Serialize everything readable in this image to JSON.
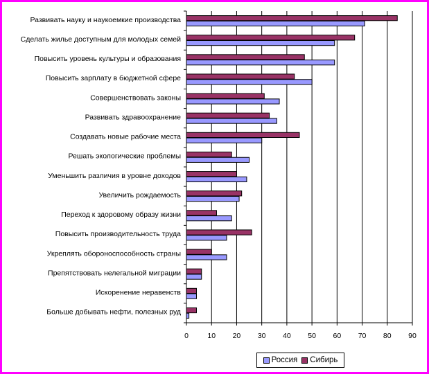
{
  "chart_data": {
    "type": "bar",
    "orientation": "horizontal",
    "categories": [
      "Развивать науку и наукоемкие производства",
      "Сделать жилье доступным для молодых семей",
      "Повысить уровень культуры и образования",
      "Повысить зарплату в бюджетной сфере",
      "Совершенствовать законы",
      "Развивать здравоохранение",
      "Создавать новые рабочие места",
      "Решать экологические проблемы",
      "Уменьшить различия в уровне доходов",
      "Увеличить рождаемость",
      "Переход к здоровому образу жизни",
      "Повысить производительность труда",
      "Укреплять обороноспособность страны",
      "Препятствовать нелегальной миграции",
      "Искоренение неравенств",
      "Больше добывать нефти, полезных руд"
    ],
    "series": [
      {
        "name": "Сибирь",
        "color": "#993366",
        "values": [
          84,
          67,
          47,
          43,
          31,
          33,
          45,
          18,
          20,
          22,
          12,
          26,
          10,
          6,
          4,
          4
        ]
      },
      {
        "name": "Россия",
        "color": "#9999ff",
        "values": [
          71,
          59,
          59,
          50,
          37,
          36,
          30,
          25,
          24,
          21,
          18,
          16,
          16,
          6,
          4,
          1
        ]
      }
    ],
    "x_ticks": [
      "0",
      "10",
      "20",
      "30",
      "40",
      "50",
      "60",
      "70",
      "80",
      "90"
    ],
    "xlim": [
      0,
      90
    ],
    "grid": "vertical",
    "legend": {
      "position": "bottom-right",
      "items": [
        "Россия",
        "Сибирь"
      ]
    }
  }
}
